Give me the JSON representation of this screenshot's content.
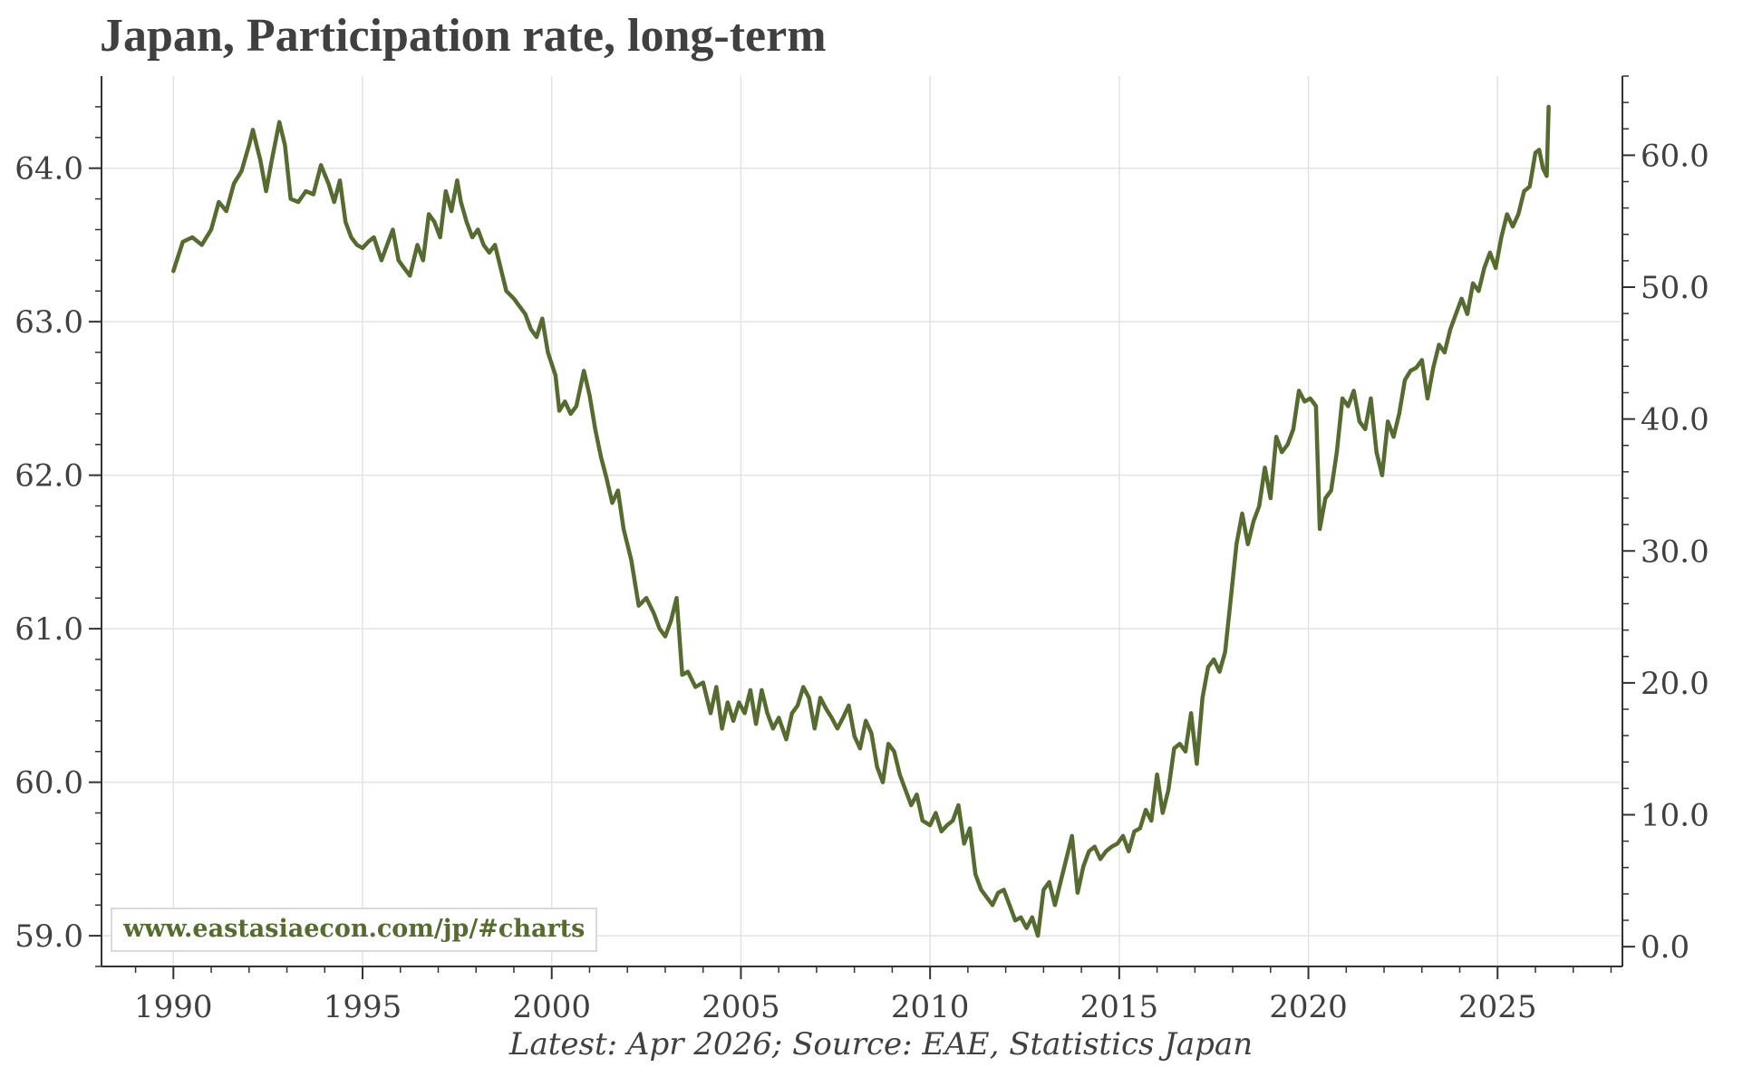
{
  "title": "Japan, Participation rate, long-term",
  "footnote": "Latest: Apr 2026; Source: EAE, Statistics Japan",
  "watermark": "www.eastasiaecon.com/jp/#charts",
  "colors": {
    "line": "#556b2f",
    "grid": "#e3e3e3",
    "axis": "#333333",
    "text": "#404040"
  },
  "chart_data": {
    "type": "line",
    "title": "Japan, Participation rate, long-term",
    "xlabel": "",
    "ylabel": "",
    "x_ticks": [
      1990,
      1995,
      2000,
      2005,
      2010,
      2015,
      2020,
      2025
    ],
    "xlim": [
      1988.1,
      2028.3
    ],
    "y_left": {
      "ticks": [
        "59.0",
        "60.0",
        "61.0",
        "62.0",
        "63.0",
        "64.0"
      ],
      "lim": [
        58.8,
        64.6
      ]
    },
    "y_right": {
      "ticks": [
        "0.0",
        "10.0",
        "20.0",
        "30.0",
        "40.0",
        "50.0",
        "60.0"
      ],
      "lim": [
        -1.5,
        66.0
      ]
    },
    "grid": true,
    "legend": "none",
    "series": [
      {
        "axis": "left",
        "points": [
          [
            1990.0,
            63.33
          ],
          [
            1990.25,
            63.52
          ],
          [
            1990.5,
            63.55
          ],
          [
            1990.75,
            63.5
          ],
          [
            1991.0,
            63.6
          ],
          [
            1991.2,
            63.78
          ],
          [
            1991.4,
            63.72
          ],
          [
            1991.6,
            63.9
          ],
          [
            1991.8,
            63.98
          ],
          [
            1992.0,
            64.15
          ],
          [
            1992.1,
            64.25
          ],
          [
            1992.2,
            64.15
          ],
          [
            1992.3,
            64.05
          ],
          [
            1992.45,
            63.85
          ],
          [
            1992.6,
            64.05
          ],
          [
            1992.8,
            64.3
          ],
          [
            1992.95,
            64.15
          ],
          [
            1993.1,
            63.8
          ],
          [
            1993.3,
            63.78
          ],
          [
            1993.5,
            63.85
          ],
          [
            1993.7,
            63.83
          ],
          [
            1993.9,
            64.02
          ],
          [
            1994.1,
            63.9
          ],
          [
            1994.25,
            63.78
          ],
          [
            1994.4,
            63.92
          ],
          [
            1994.55,
            63.65
          ],
          [
            1994.7,
            63.55
          ],
          [
            1994.85,
            63.5
          ],
          [
            1995.0,
            63.48
          ],
          [
            1995.15,
            63.52
          ],
          [
            1995.3,
            63.55
          ],
          [
            1995.5,
            63.4
          ],
          [
            1995.65,
            63.5
          ],
          [
            1995.8,
            63.6
          ],
          [
            1995.95,
            63.4
          ],
          [
            1996.1,
            63.35
          ],
          [
            1996.25,
            63.3
          ],
          [
            1996.45,
            63.5
          ],
          [
            1996.6,
            63.4
          ],
          [
            1996.75,
            63.7
          ],
          [
            1996.9,
            63.65
          ],
          [
            1997.05,
            63.55
          ],
          [
            1997.2,
            63.85
          ],
          [
            1997.35,
            63.72
          ],
          [
            1997.5,
            63.92
          ],
          [
            1997.6,
            63.78
          ],
          [
            1997.75,
            63.65
          ],
          [
            1997.9,
            63.55
          ],
          [
            1998.05,
            63.6
          ],
          [
            1998.2,
            63.5
          ],
          [
            1998.35,
            63.45
          ],
          [
            1998.5,
            63.5
          ],
          [
            1998.65,
            63.35
          ],
          [
            1998.8,
            63.2
          ],
          [
            1999.0,
            63.15
          ],
          [
            1999.15,
            63.1
          ],
          [
            1999.3,
            63.05
          ],
          [
            1999.45,
            62.95
          ],
          [
            1999.6,
            62.9
          ],
          [
            1999.75,
            63.02
          ],
          [
            1999.9,
            62.8
          ],
          [
            2000.1,
            62.65
          ],
          [
            2000.2,
            62.42
          ],
          [
            2000.35,
            62.48
          ],
          [
            2000.5,
            62.4
          ],
          [
            2000.65,
            62.45
          ],
          [
            2000.85,
            62.68
          ],
          [
            2001.0,
            62.52
          ],
          [
            2001.15,
            62.3
          ],
          [
            2001.3,
            62.12
          ],
          [
            2001.45,
            61.98
          ],
          [
            2001.6,
            61.82
          ],
          [
            2001.75,
            61.9
          ],
          [
            2001.9,
            61.65
          ],
          [
            2002.1,
            61.45
          ],
          [
            2002.3,
            61.15
          ],
          [
            2002.5,
            61.2
          ],
          [
            2002.7,
            61.1
          ],
          [
            2002.85,
            61.0
          ],
          [
            2003.0,
            60.95
          ],
          [
            2003.15,
            61.05
          ],
          [
            2003.3,
            61.2
          ],
          [
            2003.45,
            60.7
          ],
          [
            2003.6,
            60.72
          ],
          [
            2003.8,
            60.62
          ],
          [
            2004.0,
            60.65
          ],
          [
            2004.2,
            60.45
          ],
          [
            2004.35,
            60.62
          ],
          [
            2004.5,
            60.35
          ],
          [
            2004.65,
            60.52
          ],
          [
            2004.8,
            60.4
          ],
          [
            2004.95,
            60.52
          ],
          [
            2005.1,
            60.45
          ],
          [
            2005.25,
            60.6
          ],
          [
            2005.4,
            60.38
          ],
          [
            2005.55,
            60.6
          ],
          [
            2005.7,
            60.45
          ],
          [
            2005.85,
            60.35
          ],
          [
            2006.0,
            60.42
          ],
          [
            2006.2,
            60.28
          ],
          [
            2006.35,
            60.45
          ],
          [
            2006.5,
            60.5
          ],
          [
            2006.65,
            60.62
          ],
          [
            2006.8,
            60.55
          ],
          [
            2006.95,
            60.35
          ],
          [
            2007.1,
            60.55
          ],
          [
            2007.25,
            60.48
          ],
          [
            2007.4,
            60.42
          ],
          [
            2007.55,
            60.35
          ],
          [
            2007.7,
            60.42
          ],
          [
            2007.85,
            60.5
          ],
          [
            2008.0,
            60.3
          ],
          [
            2008.15,
            60.22
          ],
          [
            2008.3,
            60.4
          ],
          [
            2008.45,
            60.32
          ],
          [
            2008.6,
            60.1
          ],
          [
            2008.75,
            60.0
          ],
          [
            2008.9,
            60.25
          ],
          [
            2009.05,
            60.2
          ],
          [
            2009.2,
            60.05
          ],
          [
            2009.35,
            59.95
          ],
          [
            2009.5,
            59.85
          ],
          [
            2009.65,
            59.92
          ],
          [
            2009.8,
            59.75
          ],
          [
            2010.0,
            59.72
          ],
          [
            2010.15,
            59.8
          ],
          [
            2010.3,
            59.68
          ],
          [
            2010.45,
            59.72
          ],
          [
            2010.6,
            59.75
          ],
          [
            2010.75,
            59.85
          ],
          [
            2010.9,
            59.6
          ],
          [
            2011.05,
            59.7
          ],
          [
            2011.2,
            59.4
          ],
          [
            2011.35,
            59.3
          ],
          [
            2011.5,
            59.25
          ],
          [
            2011.65,
            59.2
          ],
          [
            2011.8,
            59.28
          ],
          [
            2011.95,
            59.3
          ],
          [
            2012.1,
            59.2
          ],
          [
            2012.25,
            59.1
          ],
          [
            2012.4,
            59.12
          ],
          [
            2012.55,
            59.05
          ],
          [
            2012.7,
            59.12
          ],
          [
            2012.85,
            59.0
          ],
          [
            2013.0,
            59.3
          ],
          [
            2013.15,
            59.35
          ],
          [
            2013.3,
            59.2
          ],
          [
            2013.45,
            59.35
          ],
          [
            2013.6,
            59.5
          ],
          [
            2013.75,
            59.65
          ],
          [
            2013.9,
            59.28
          ],
          [
            2014.05,
            59.45
          ],
          [
            2014.2,
            59.55
          ],
          [
            2014.35,
            59.58
          ],
          [
            2014.5,
            59.5
          ],
          [
            2014.65,
            59.55
          ],
          [
            2014.8,
            59.58
          ],
          [
            2014.95,
            59.6
          ],
          [
            2015.1,
            59.65
          ],
          [
            2015.25,
            59.55
          ],
          [
            2015.4,
            59.68
          ],
          [
            2015.55,
            59.7
          ],
          [
            2015.7,
            59.82
          ],
          [
            2015.85,
            59.75
          ],
          [
            2016.0,
            60.05
          ],
          [
            2016.15,
            59.8
          ],
          [
            2016.3,
            59.95
          ],
          [
            2016.45,
            60.22
          ],
          [
            2016.6,
            60.25
          ],
          [
            2016.75,
            60.2
          ],
          [
            2016.9,
            60.45
          ],
          [
            2017.05,
            60.12
          ],
          [
            2017.2,
            60.55
          ],
          [
            2017.35,
            60.75
          ],
          [
            2017.5,
            60.8
          ],
          [
            2017.65,
            60.72
          ],
          [
            2017.8,
            60.85
          ],
          [
            2017.95,
            61.2
          ],
          [
            2018.1,
            61.55
          ],
          [
            2018.25,
            61.75
          ],
          [
            2018.4,
            61.55
          ],
          [
            2018.55,
            61.7
          ],
          [
            2018.7,
            61.8
          ],
          [
            2018.85,
            62.05
          ],
          [
            2019.0,
            61.85
          ],
          [
            2019.15,
            62.25
          ],
          [
            2019.3,
            62.15
          ],
          [
            2019.45,
            62.2
          ],
          [
            2019.6,
            62.3
          ],
          [
            2019.75,
            62.55
          ],
          [
            2019.9,
            62.48
          ],
          [
            2020.05,
            62.5
          ],
          [
            2020.2,
            62.45
          ],
          [
            2020.3,
            61.65
          ],
          [
            2020.45,
            61.85
          ],
          [
            2020.6,
            61.9
          ],
          [
            2020.75,
            62.15
          ],
          [
            2020.9,
            62.5
          ],
          [
            2021.05,
            62.45
          ],
          [
            2021.2,
            62.55
          ],
          [
            2021.35,
            62.35
          ],
          [
            2021.5,
            62.3
          ],
          [
            2021.65,
            62.5
          ],
          [
            2021.8,
            62.15
          ],
          [
            2021.95,
            62.0
          ],
          [
            2022.1,
            62.35
          ],
          [
            2022.25,
            62.25
          ],
          [
            2022.4,
            62.4
          ],
          [
            2022.55,
            62.62
          ],
          [
            2022.7,
            62.68
          ],
          [
            2022.85,
            62.7
          ],
          [
            2023.0,
            62.75
          ],
          [
            2023.15,
            62.5
          ],
          [
            2023.3,
            62.7
          ],
          [
            2023.45,
            62.85
          ],
          [
            2023.6,
            62.8
          ],
          [
            2023.75,
            62.95
          ],
          [
            2023.9,
            63.05
          ],
          [
            2024.05,
            63.15
          ],
          [
            2024.2,
            63.05
          ],
          [
            2024.35,
            63.25
          ],
          [
            2024.5,
            63.2
          ],
          [
            2024.65,
            63.35
          ],
          [
            2024.8,
            63.45
          ],
          [
            2024.95,
            63.35
          ],
          [
            2025.1,
            63.55
          ],
          [
            2025.25,
            63.7
          ],
          [
            2025.4,
            63.62
          ],
          [
            2025.55,
            63.7
          ],
          [
            2025.7,
            63.85
          ],
          [
            2025.85,
            63.88
          ],
          [
            2026.0,
            64.1
          ],
          [
            2026.1,
            64.12
          ],
          [
            2026.2,
            64.0
          ],
          [
            2026.3,
            63.95
          ],
          [
            2026.35,
            64.4
          ]
        ]
      }
    ]
  }
}
